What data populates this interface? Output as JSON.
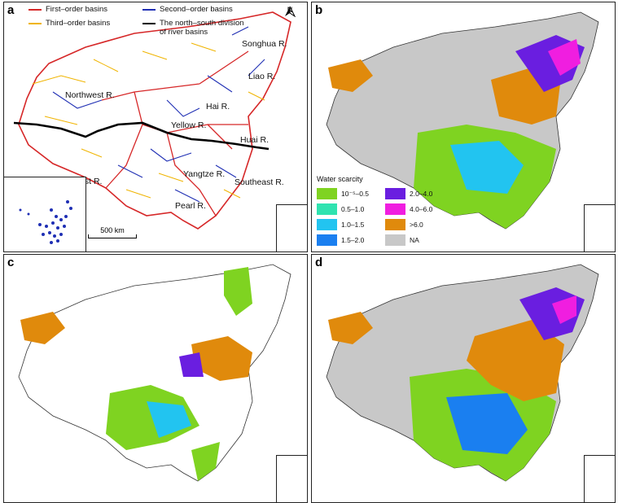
{
  "panels": {
    "a": {
      "label": "a"
    },
    "b": {
      "label": "b"
    },
    "c": {
      "label": "c"
    },
    "d": {
      "label": "d"
    }
  },
  "legend_a": {
    "first": "First–order basins",
    "second": "Second–order basins",
    "third": "Third–order basins",
    "division_line1": "The north–south division",
    "division_line2": "of river basins",
    "colors": {
      "first": "#d62728",
      "second": "#1f2fb4",
      "third": "#f0b400",
      "division": "#000000"
    }
  },
  "north_arrow": "N",
  "scale_bar": "500 km",
  "basins": {
    "songhua": "Songhua R.",
    "liao": "Liao R.",
    "northwest": "Northwest R.",
    "hai": "Hai R.",
    "yellow": "Yellow R.",
    "huai": "Huai R.",
    "southwest": "Southwest R.",
    "yangtze": "Yangtze R.",
    "southeast": "Southeast R.",
    "pearl": "Pearl R."
  },
  "water_scarcity_legend": {
    "title": "Water scarcity",
    "items": [
      {
        "label": "10⁻⁵–0.5",
        "color": "#7fd321"
      },
      {
        "label": "0.5–1.0",
        "color": "#2fe3b0"
      },
      {
        "label": "1.0–1.5",
        "color": "#22c4f0"
      },
      {
        "label": "1.5–2.0",
        "color": "#1a7ff0"
      },
      {
        "label": "2.0–4.0",
        "color": "#6a1ee0"
      },
      {
        "label": "4.0–6.0",
        "color": "#f01ee0"
      },
      {
        "label": ">6.0",
        "color": "#e08a0c"
      },
      {
        "label": "NA",
        "color": "#c8c8c8"
      }
    ]
  }
}
